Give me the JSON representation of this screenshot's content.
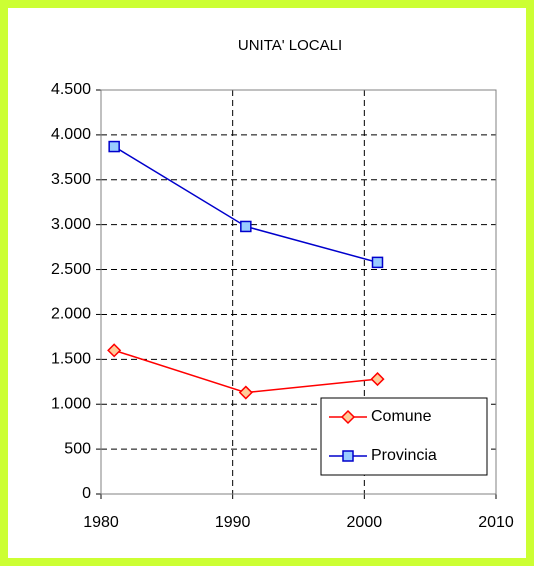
{
  "chart_data": {
    "type": "line",
    "title": "UNITA' LOCALI",
    "x": [
      1981,
      1991,
      2001
    ],
    "series": [
      {
        "name": "Comune",
        "color": "#ff0000",
        "marker": "diamond",
        "values": [
          1600,
          1130,
          1280
        ]
      },
      {
        "name": "Provincia",
        "color": "#0000cc",
        "marker": "square",
        "values": [
          3870,
          2980,
          2580
        ]
      }
    ],
    "xlim": [
      1980,
      2010
    ],
    "xticks": [
      1980,
      1990,
      2000,
      2010
    ],
    "ylim": [
      0,
      4500
    ],
    "yticks": [
      0,
      500,
      {
        "value": 1000,
        "label": "1.000"
      },
      {
        "value": 1500,
        "label": "1.500"
      },
      {
        "value": 2000,
        "label": "2.000"
      },
      {
        "value": 2500,
        "label": "2.500"
      },
      {
        "value": 3000,
        "label": "3.000"
      },
      {
        "value": 3500,
        "label": "3.500"
      },
      {
        "value": 4000,
        "label": "4.000"
      },
      {
        "value": 4500,
        "label": "4.500"
      }
    ],
    "grid": true,
    "legend": "lower right"
  }
}
